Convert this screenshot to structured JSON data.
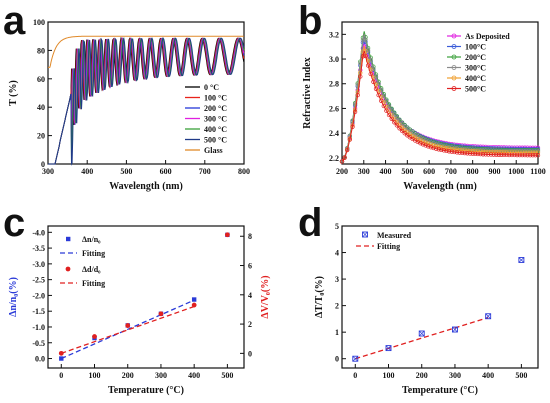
{
  "chart_data": [
    {
      "panel": "a",
      "type": "line",
      "xlabel": "Wavelength (nm)",
      "ylabel": "T (%)",
      "xlim": [
        300,
        800
      ],
      "ylim": [
        0,
        100
      ],
      "xticks": [
        "300",
        "400",
        "500",
        "600",
        "700",
        "800"
      ],
      "yticks": [
        "0",
        "20",
        "40",
        "60",
        "80",
        "100"
      ],
      "legend_position": "right",
      "legend": [
        "0 °C",
        "100 °C",
        "200 °C",
        "300 °C",
        "400 °C",
        "500 °C",
        "Glass"
      ],
      "colors": [
        "#000000",
        "#e8231b",
        "#2538d8",
        "#e020e0",
        "#3aa03a",
        "#1f3a88",
        "#e08a2a"
      ],
      "series": [
        {
          "name": "0 °C",
          "offset": 0
        },
        {
          "name": "100 °C",
          "offset": 1.5
        },
        {
          "name": "200 °C",
          "offset": 3
        },
        {
          "name": "300 °C",
          "offset": 4
        },
        {
          "name": "400 °C",
          "offset": 5.5
        },
        {
          "name": "500 °C",
          "offset": 7
        },
        {
          "name": "Glass",
          "glass": true
        }
      ]
    },
    {
      "panel": "b",
      "type": "line",
      "xlabel": "Wavelength (nm)",
      "ylabel": "Refractive Index",
      "xlim": [
        200,
        1100
      ],
      "ylim": [
        2.15,
        3.3
      ],
      "xticks": [
        "200",
        "300",
        "400",
        "500",
        "600",
        "700",
        "800",
        "900",
        "1000",
        "1100"
      ],
      "yticks": [
        "2.2",
        "2.4",
        "2.6",
        "2.8",
        "3.0",
        "3.2"
      ],
      "legend_position": "top-right",
      "legend": [
        "As Deposited",
        "100°C",
        "200°C",
        "300°C",
        "400°C",
        "500°C"
      ],
      "colors": [
        "#e020e0",
        "#3a5bd8",
        "#3aa03a",
        "#8a8a8a",
        "#f0a030",
        "#e02020"
      ],
      "series": [
        {
          "name": "As Deposited",
          "peak": 3.15,
          "tail": 2.28
        },
        {
          "name": "100°C",
          "peak": 3.2,
          "tail": 2.27
        },
        {
          "name": "200°C",
          "peak": 3.24,
          "tail": 2.26
        },
        {
          "name": "300°C",
          "peak": 3.22,
          "tail": 2.25
        },
        {
          "name": "400°C",
          "peak": 3.12,
          "tail": 2.24
        },
        {
          "name": "500°C",
          "peak": 3.08,
          "tail": 2.22
        }
      ]
    },
    {
      "panel": "c",
      "type": "scatter",
      "xlabel": "Temperature (°C)",
      "ylabel_left": "Δn/n₀(%)",
      "ylabel_right": "ΔV/V₀(%)",
      "xlim": [
        -40,
        550
      ],
      "ylim_left": [
        0.3,
        -4.2
      ],
      "ylim_right": [
        -1,
        8.7
      ],
      "xticks": [
        "0",
        "100",
        "200",
        "300",
        "400",
        "500"
      ],
      "yticks_left": [
        "0.0",
        "-0.5",
        "-1.0",
        "-1.5",
        "-2.0",
        "-2.5",
        "-3.0",
        "-3.5",
        "-4.0"
      ],
      "yticks_right": [
        "0",
        "2",
        "4",
        "6",
        "8"
      ],
      "legend": [
        "Δn/n₀",
        "Fitting",
        "Δd/d₀",
        "Fitting"
      ],
      "series": [
        {
          "name": "Δn/n₀",
          "x": [
            0,
            100,
            200,
            300,
            400,
            500
          ],
          "y": [
            0,
            -0.65,
            -1.05,
            -1.42,
            -1.87,
            -3.92
          ],
          "color": "#2a3ad8"
        },
        {
          "name": "Fitting",
          "x": [
            0,
            400
          ],
          "y": [
            0,
            -1.85
          ],
          "color": "#2a3ad8"
        },
        {
          "name": "Δd/d₀",
          "x": [
            0,
            100,
            200,
            300,
            400,
            500
          ],
          "y": [
            0,
            1.15,
            1.9,
            2.7,
            3.3,
            8.1
          ],
          "color": "#e02020"
        },
        {
          "name": "Fitting",
          "x": [
            0,
            400
          ],
          "y": [
            0,
            3.2
          ],
          "color": "#e02020"
        }
      ]
    },
    {
      "panel": "d",
      "type": "scatter",
      "xlabel": "Temperature (°C)",
      "ylabel": "ΔT/T₀(%)",
      "xlim": [
        -40,
        550
      ],
      "ylim": [
        -0.35,
        5
      ],
      "xticks": [
        "0",
        "100",
        "200",
        "300",
        "400",
        "500"
      ],
      "yticks": [
        "0",
        "1",
        "2",
        "3",
        "4",
        "5"
      ],
      "legend": [
        "Measured",
        "Fitting"
      ],
      "series": [
        {
          "name": "Measured",
          "x": [
            0,
            100,
            200,
            300,
            400,
            500
          ],
          "y": [
            0,
            0.4,
            0.95,
            1.1,
            1.6,
            3.72
          ],
          "color": "#2a3ad8"
        },
        {
          "name": "Fitting",
          "x": [
            0,
            400
          ],
          "y": [
            0,
            1.55
          ],
          "color": "#e02020"
        }
      ]
    }
  ],
  "panel_letters": [
    "a",
    "b",
    "c",
    "d"
  ]
}
